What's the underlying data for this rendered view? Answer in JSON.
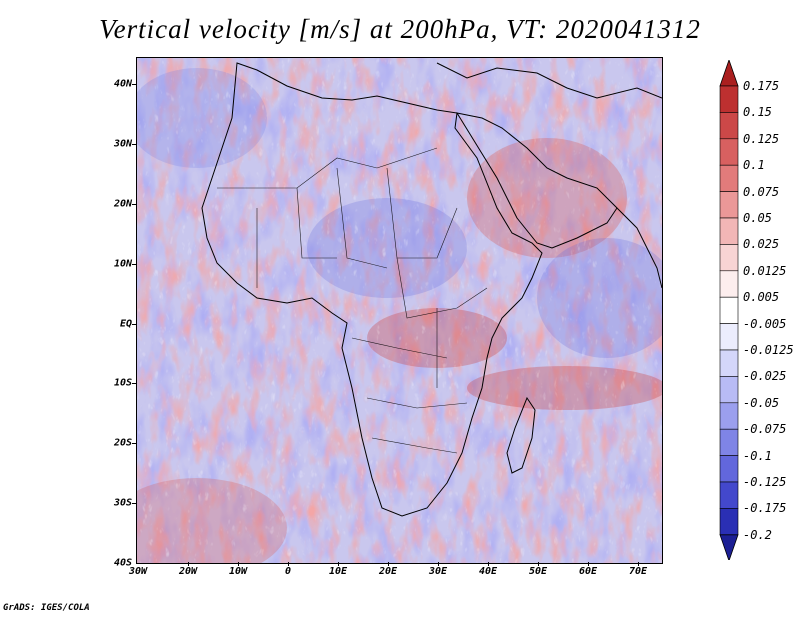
{
  "title": "Vertical velocity [m/s] at 200hPa, VT: 2020041312",
  "credit": "GrADS: IGES/COLA",
  "map": {
    "lat_labels": [
      "40N",
      "30N",
      "20N",
      "10N",
      "EQ",
      "10S",
      "20S",
      "30S",
      "40S"
    ],
    "lon_labels": [
      "30W",
      "20W",
      "10W",
      "0",
      "10E",
      "20E",
      "30E",
      "40E",
      "50E",
      "60E",
      "70E"
    ],
    "lat_range": [
      -40,
      44
    ],
    "lon_range": [
      -30,
      75
    ]
  },
  "colorbar": {
    "labels": [
      "0.175",
      "0.15",
      "0.125",
      "0.1",
      "0.075",
      "0.05",
      "0.025",
      "0.0125",
      "0.005",
      "-0.005",
      "-0.0125",
      "-0.025",
      "-0.05",
      "-0.075",
      "-0.1",
      "-0.125",
      "-0.175",
      "-0.2"
    ],
    "colors": [
      "#aa1f1f",
      "#bd3030",
      "#cc4848",
      "#d86060",
      "#e27b7b",
      "#eb9898",
      "#f2b6b6",
      "#f8d4d4",
      "#fdeeee",
      "#ffffff",
      "#ecedfd",
      "#d4d6fa",
      "#b8bbf5",
      "#9b9fee",
      "#7f84e6",
      "#6267dc",
      "#4348cc",
      "#2a2fb4",
      "#1c1f94"
    ]
  }
}
